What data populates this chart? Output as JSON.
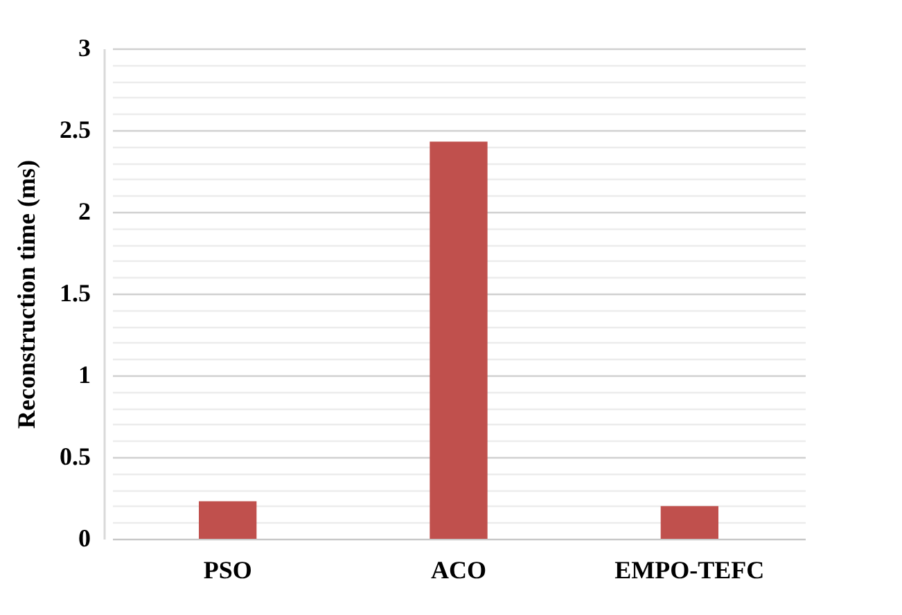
{
  "chart_data": {
    "type": "bar",
    "ylabel": "Reconstruction time (ms)",
    "categories": [
      "PSO",
      "ACO",
      "EMPO-TEFC"
    ],
    "values": [
      0.23,
      2.43,
      0.2
    ],
    "color": "#c0504d",
    "ylim": [
      0,
      3
    ],
    "yticks": [
      0,
      {
        "value": 0.1,
        "label": null
      },
      {
        "value": 0.2,
        "label": null
      },
      {
        "value": 0.3,
        "label": null
      },
      {
        "value": 0.4,
        "label": null
      },
      0.5,
      {
        "value": 0.6,
        "label": null
      },
      {
        "value": 0.7,
        "label": null
      },
      {
        "value": 0.8,
        "label": null
      },
      {
        "value": 0.9,
        "label": null
      },
      1,
      {
        "value": 1.1,
        "label": null
      },
      {
        "value": 1.2,
        "label": null
      },
      {
        "value": 1.3,
        "label": null
      },
      {
        "value": 1.4,
        "label": null
      },
      1.5,
      {
        "value": 1.6,
        "label": null
      },
      {
        "value": 1.7,
        "label": null
      },
      {
        "value": 1.8,
        "label": null
      },
      {
        "value": 1.9,
        "label": null
      },
      2,
      {
        "value": 2.1,
        "label": null
      },
      {
        "value": 2.2,
        "label": null
      },
      {
        "value": 2.3,
        "label": null
      },
      {
        "value": 2.4,
        "label": null
      },
      2.5,
      {
        "value": 2.6,
        "label": null
      },
      {
        "value": 2.7,
        "label": null
      },
      {
        "value": 2.8,
        "label": null
      },
      {
        "value": 2.9,
        "label": null
      },
      3
    ],
    "grid": true
  }
}
